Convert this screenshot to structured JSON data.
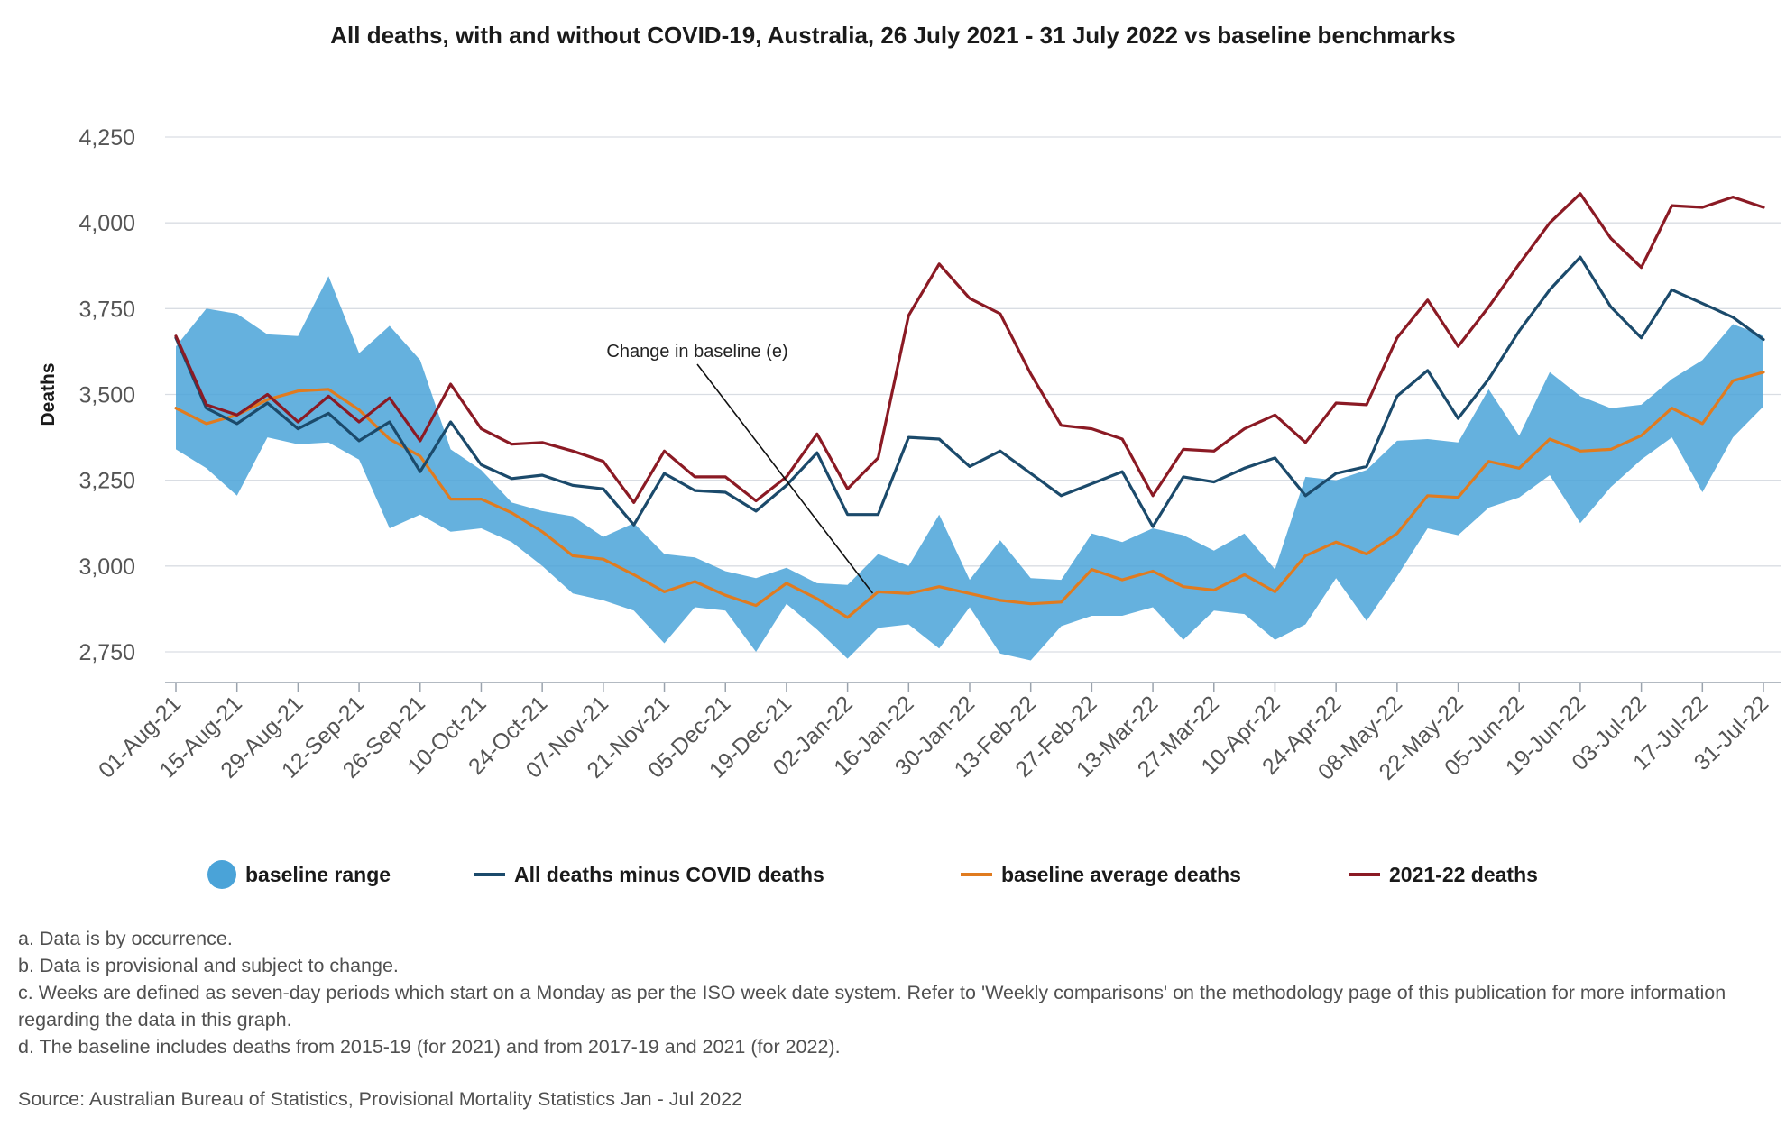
{
  "chart_data": {
    "type": "line",
    "title": "All deaths, with and without COVID-19, Australia, 26 July 2021 - 31 July 2022 vs baseline benchmarks",
    "xlabel": "",
    "ylabel": "Deaths",
    "ylim": [
      2650,
      4300
    ],
    "yticks": [
      2750,
      3000,
      3250,
      3500,
      3750,
      4000,
      4250
    ],
    "ytick_labels": [
      "2,750",
      "3,000",
      "3,250",
      "3,500",
      "3,750",
      "4,000",
      "4,250"
    ],
    "grid": "horizontal",
    "legend_position": "bottom",
    "x": [
      "01-Aug-21",
      "08-Aug-21",
      "15-Aug-21",
      "22-Aug-21",
      "29-Aug-21",
      "05-Sep-21",
      "12-Sep-21",
      "19-Sep-21",
      "26-Sep-21",
      "03-Oct-21",
      "10-Oct-21",
      "17-Oct-21",
      "24-Oct-21",
      "31-Oct-21",
      "07-Nov-21",
      "14-Nov-21",
      "21-Nov-21",
      "28-Nov-21",
      "05-Dec-21",
      "12-Dec-21",
      "19-Dec-21",
      "26-Dec-21",
      "02-Jan-22",
      "09-Jan-22",
      "16-Jan-22",
      "23-Jan-22",
      "30-Jan-22",
      "06-Feb-22",
      "13-Feb-22",
      "20-Feb-22",
      "27-Feb-22",
      "06-Mar-22",
      "13-Mar-22",
      "20-Mar-22",
      "27-Mar-22",
      "03-Apr-22",
      "10-Apr-22",
      "17-Apr-22",
      "24-Apr-22",
      "01-May-22",
      "08-May-22",
      "15-May-22",
      "22-May-22",
      "29-May-22",
      "05-Jun-22",
      "12-Jun-22",
      "19-Jun-22",
      "26-Jun-22",
      "03-Jul-22",
      "10-Jul-22",
      "17-Jul-22",
      "24-Jul-22",
      "31-Jul-22"
    ],
    "x_tick_labels": [
      "01-Aug-21",
      "15-Aug-21",
      "29-Aug-21",
      "12-Sep-21",
      "26-Sep-21",
      "10-Oct-21",
      "24-Oct-21",
      "07-Nov-21",
      "21-Nov-21",
      "05-Dec-21",
      "19-Dec-21",
      "02-Jan-22",
      "16-Jan-22",
      "30-Jan-22",
      "13-Feb-22",
      "27-Feb-22",
      "13-Mar-22",
      "27-Mar-22",
      "10-Apr-22",
      "24-Apr-22",
      "08-May-22",
      "22-May-22",
      "05-Jun-22",
      "19-Jun-22",
      "03-Jul-22",
      "17-Jul-22",
      "31-Jul-22"
    ],
    "band": {
      "name": "baseline range",
      "color": "#4aa3d8",
      "upper": [
        3640,
        3750,
        3735,
        3675,
        3670,
        3845,
        3620,
        3700,
        3600,
        3340,
        3280,
        3185,
        3160,
        3145,
        3085,
        3125,
        3035,
        3025,
        2985,
        2965,
        2995,
        2950,
        2945,
        3035,
        3000,
        3150,
        2960,
        3075,
        2965,
        2960,
        3095,
        3070,
        3110,
        3090,
        3045,
        3095,
        2990,
        3260,
        3250,
        3280,
        3365,
        3370,
        3360,
        3515,
        3380,
        3565,
        3495,
        3460,
        3470,
        3545,
        3600,
        3705,
        3670
      ],
      "lower": [
        3340,
        3285,
        3205,
        3375,
        3355,
        3360,
        3310,
        3110,
        3150,
        3100,
        3110,
        3070,
        3000,
        2920,
        2900,
        2870,
        2775,
        2880,
        2870,
        2750,
        2890,
        2815,
        2730,
        2820,
        2830,
        2760,
        2880,
        2745,
        2725,
        2825,
        2855,
        2855,
        2880,
        2785,
        2870,
        2860,
        2785,
        2830,
        2965,
        2840,
        2970,
        3110,
        3090,
        3170,
        3200,
        3265,
        3125,
        3230,
        3310,
        3375,
        3215,
        3375,
        3465
      ]
    },
    "series": [
      {
        "name": "All deaths minus COVID deaths",
        "color": "#1b4a6b",
        "values": [
          3665,
          3460,
          3415,
          3475,
          3400,
          3445,
          3365,
          3420,
          3275,
          3420,
          3295,
          3255,
          3265,
          3235,
          3225,
          3120,
          3270,
          3220,
          3215,
          3160,
          3235,
          3330,
          3150,
          3150,
          3375,
          3370,
          3290,
          3335,
          3270,
          3205,
          3240,
          3275,
          3115,
          3260,
          3245,
          3285,
          3315,
          3205,
          3270,
          3290,
          3495,
          3570,
          3430,
          3545,
          3685,
          3805,
          3900,
          3755,
          3665,
          3805,
          3765,
          3725,
          3660
        ]
      },
      {
        "name": "baseline average deaths",
        "color": "#e07b1f",
        "values": [
          3460,
          3415,
          3440,
          3485,
          3510,
          3515,
          3455,
          3370,
          3320,
          3195,
          3195,
          3155,
          3100,
          3030,
          3020,
          2975,
          2925,
          2955,
          2915,
          2885,
          2950,
          2905,
          2850,
          2925,
          2920,
          2940,
          2920,
          2900,
          2890,
          2895,
          2990,
          2960,
          2985,
          2940,
          2930,
          2975,
          2925,
          3030,
          3070,
          3035,
          3095,
          3205,
          3200,
          3305,
          3285,
          3370,
          3335,
          3340,
          3380,
          3460,
          3415,
          3540,
          3565
        ]
      },
      {
        "name": "2021-22 deaths",
        "color": "#8b1a24",
        "values": [
          3670,
          3470,
          3440,
          3500,
          3420,
          3495,
          3420,
          3490,
          3365,
          3530,
          3400,
          3355,
          3360,
          3335,
          3305,
          3185,
          3335,
          3260,
          3260,
          3190,
          3260,
          3385,
          3225,
          3315,
          3730,
          3880,
          3780,
          3735,
          3560,
          3410,
          3400,
          3370,
          3205,
          3340,
          3335,
          3400,
          3440,
          3360,
          3475,
          3470,
          3665,
          3775,
          3640,
          3755,
          3880,
          4000,
          4085,
          3955,
          3870,
          4050,
          4045,
          4075,
          4045
        ]
      }
    ],
    "legend": [
      {
        "name": "baseline range",
        "symbol": "circle",
        "color": "#4aa3d8"
      },
      {
        "name": "All deaths minus COVID deaths",
        "symbol": "line",
        "color": "#1b4a6b"
      },
      {
        "name": "baseline average deaths",
        "symbol": "line",
        "color": "#e07b1f"
      },
      {
        "name": "2021-22 deaths",
        "symbol": "line",
        "color": "#8b1a24"
      }
    ],
    "annotation": {
      "text": "Change in baseline (e)",
      "points_to_x": "09-Jan-22"
    }
  },
  "notes": [
    "a. Data is by occurrence.",
    "b. Data is provisional and subject to change.",
    "c. Weeks are defined as seven-day periods which start on a Monday as per the ISO week date system. Refer to 'Weekly comparisons' on the methodology page of this publication for more information regarding the data in this graph.",
    "d. The baseline includes deaths from 2015-19 (for 2021) and from 2017-19 and 2021 (for 2022)."
  ],
  "source": "Source: Australian Bureau of Statistics, Provisional Mortality Statistics Jan - Jul 2022"
}
